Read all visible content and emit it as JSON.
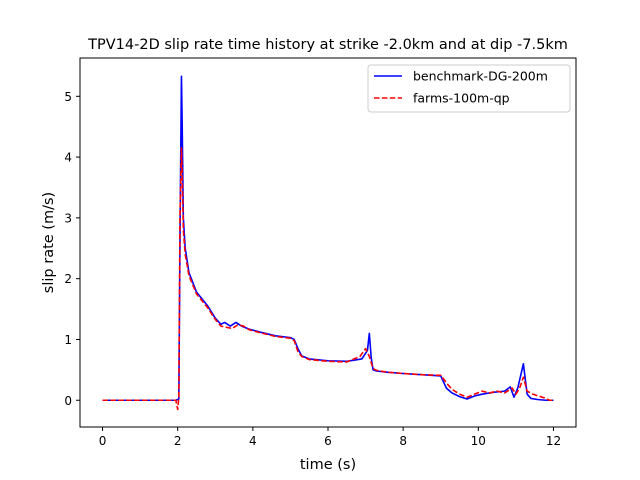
{
  "chart_data": {
    "type": "line",
    "title": "TPV14-2D slip rate time history at strike -2.0km and at dip -7.5km",
    "xlabel": "time (s)",
    "ylabel": "slip rate (m/s)",
    "xlim": [
      -0.6,
      12.6
    ],
    "ylim": [
      -0.44,
      5.63
    ],
    "xticks": [
      0,
      2,
      4,
      6,
      8,
      10,
      12
    ],
    "yticks": [
      0,
      1,
      2,
      3,
      4,
      5
    ],
    "grid": false,
    "legend_position": "top-right",
    "series": [
      {
        "name": "benchmark-DG-200m",
        "color": "#0000ff",
        "style": "solid",
        "x": [
          0,
          1.95,
          2.03,
          2.07,
          2.1,
          2.12,
          2.15,
          2.2,
          2.3,
          2.5,
          2.8,
          3.0,
          3.15,
          3.25,
          3.4,
          3.55,
          3.7,
          3.9,
          4.2,
          4.6,
          5.0,
          5.1,
          5.2,
          5.3,
          5.5,
          6.0,
          6.5,
          6.9,
          7.05,
          7.1,
          7.15,
          7.2,
          7.3,
          7.6,
          8.0,
          8.5,
          9.0,
          9.15,
          9.3,
          9.5,
          9.7,
          9.9,
          10.1,
          10.4,
          10.7,
          10.85,
          10.95,
          11.05,
          11.2,
          11.25,
          11.3,
          11.4,
          11.6,
          11.8,
          12.0
        ],
        "y": [
          0,
          0,
          0.02,
          3.3,
          5.33,
          4.5,
          3.0,
          2.5,
          2.1,
          1.78,
          1.55,
          1.35,
          1.25,
          1.28,
          1.22,
          1.28,
          1.22,
          1.17,
          1.12,
          1.06,
          1.03,
          1.0,
          0.85,
          0.73,
          0.68,
          0.65,
          0.64,
          0.68,
          0.82,
          1.1,
          0.7,
          0.5,
          0.48,
          0.46,
          0.44,
          0.42,
          0.4,
          0.2,
          0.12,
          0.06,
          0.02,
          0.07,
          0.1,
          0.13,
          0.15,
          0.22,
          0.05,
          0.2,
          0.6,
          0.35,
          0.1,
          0.03,
          0.01,
          0.0,
          0.0
        ]
      },
      {
        "name": "farms-100m-qp",
        "color": "#ff0000",
        "style": "dashed",
        "x": [
          0,
          1.95,
          2.0,
          2.03,
          2.06,
          2.1,
          2.12,
          2.15,
          2.2,
          2.3,
          2.5,
          2.8,
          3.0,
          3.15,
          3.3,
          3.45,
          3.6,
          3.75,
          3.9,
          4.2,
          4.6,
          5.0,
          5.1,
          5.2,
          5.3,
          5.5,
          6.0,
          6.5,
          6.85,
          7.0,
          7.1,
          7.2,
          7.3,
          7.6,
          8.0,
          8.5,
          9.0,
          9.2,
          9.3,
          9.5,
          9.7,
          9.9,
          10.1,
          10.3,
          10.5,
          10.7,
          10.9,
          11.0,
          11.1,
          11.2,
          11.3,
          11.45,
          11.6,
          11.75,
          11.9,
          12.0
        ],
        "y": [
          0,
          0,
          -0.15,
          0.05,
          3.0,
          4.15,
          3.7,
          2.8,
          2.4,
          2.05,
          1.75,
          1.52,
          1.33,
          1.22,
          1.2,
          1.18,
          1.24,
          1.22,
          1.16,
          1.11,
          1.05,
          1.02,
          0.98,
          0.8,
          0.72,
          0.67,
          0.64,
          0.63,
          0.72,
          0.85,
          0.72,
          0.52,
          0.49,
          0.46,
          0.44,
          0.42,
          0.41,
          0.25,
          0.18,
          0.1,
          0.05,
          0.1,
          0.15,
          0.12,
          0.15,
          0.12,
          0.2,
          0.1,
          0.2,
          0.38,
          0.15,
          0.1,
          0.07,
          0.04,
          0.0,
          0.0
        ]
      }
    ]
  }
}
